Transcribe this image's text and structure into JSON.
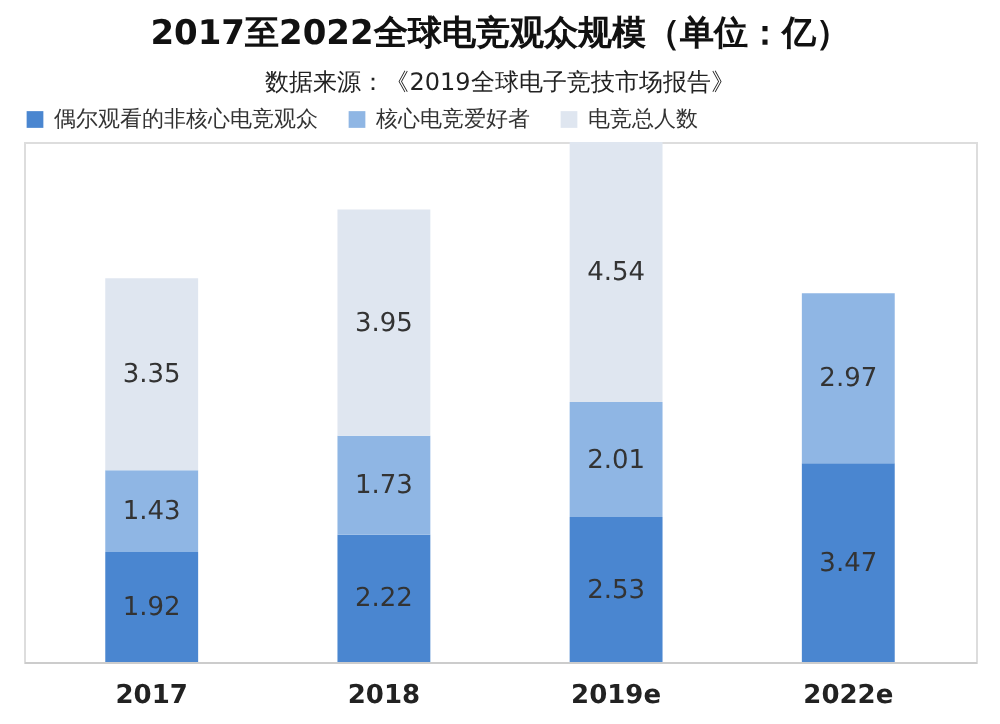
{
  "chart_data": {
    "type": "bar",
    "stacked": true,
    "data_labels": true,
    "legend": "top left",
    "title": "2017至2022全球电竞观众规模（单位：亿）",
    "subtitle": "数据来源：《2019全球电子竞技市场报告》",
    "categories": [
      "2017",
      "2018",
      "2019e",
      "2022e"
    ],
    "series": [
      {
        "name": "偶尔观看的非核心电竞观众",
        "color": "#4a86d0",
        "values": [
          1.92,
          2.22,
          2.53,
          3.47
        ]
      },
      {
        "name": "核心电竞爱好者",
        "color": "#8fb6e4",
        "values": [
          1.43,
          1.73,
          2.01,
          2.97
        ]
      },
      {
        "name": "电竞总人数",
        "color": "#dfe6f0",
        "values": [
          3.35,
          3.95,
          4.54,
          null
        ]
      }
    ]
  }
}
